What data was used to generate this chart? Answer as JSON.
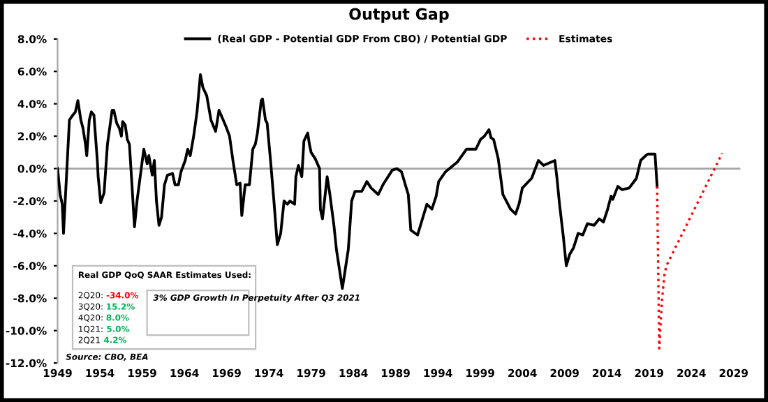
{
  "chart_data": {
    "type": "line",
    "title": "Output Gap",
    "series": [
      {
        "name": "(Real GDP - Potential GDP From CBO) / Potential GDP",
        "color": "#000000",
        "line_style": "solid",
        "x": [
          1949.0,
          1949.3,
          1949.55,
          1949.7,
          1950.4,
          1950.8,
          1951.1,
          1951.4,
          1951.75,
          1952.0,
          1952.3,
          1952.45,
          1952.75,
          1953.0,
          1953.3,
          1953.7,
          1953.8,
          1954.1,
          1954.5,
          1954.9,
          1955.45,
          1955.65,
          1956.0,
          1956.3,
          1956.55,
          1956.7,
          1957.0,
          1957.25,
          1957.5,
          1957.8,
          1958.1,
          1958.4,
          1959.2,
          1959.6,
          1959.8,
          1960.2,
          1960.45,
          1960.7,
          1961.0,
          1961.3,
          1961.65,
          1962.0,
          1962.6,
          1962.9,
          1963.3,
          1963.6,
          1964.1,
          1964.4,
          1964.7,
          1965.1,
          1965.5,
          1965.9,
          1966.2,
          1966.65,
          1967.15,
          1967.7,
          1968.1,
          1968.6,
          1969.0,
          1969.35,
          1969.75,
          1970.2,
          1970.6,
          1970.8,
          1971.2,
          1971.7,
          1972.1,
          1972.4,
          1972.65,
          1973.1,
          1973.25,
          1973.6,
          1973.8,
          1974.2,
          1974.6,
          1975.0,
          1975.4,
          1975.8,
          1976.2,
          1976.5,
          1977.05,
          1977.2,
          1977.5,
          1977.9,
          1978.15,
          1978.6,
          1978.8,
          1979.0,
          1979.5,
          1980.0,
          1980.1,
          1980.35,
          1980.9,
          1981.2,
          1981.7,
          1982.0,
          1982.7,
          1983.4,
          1983.8,
          1984.2,
          1985.0,
          1985.6,
          1986.1,
          1986.95,
          1987.5,
          1988.6,
          1989.15,
          1989.7,
          1990.5,
          1990.8,
          1991.6,
          1992.7,
          1993.3,
          1993.8,
          1994.1,
          1994.9,
          1996.3,
          1997.4,
          1998.5,
          1999.05,
          1999.5,
          2000.05,
          2000.3,
          2000.6,
          2001.15,
          2001.7,
          2002.6,
          2003.2,
          2003.6,
          2004.0,
          2005.1,
          2005.9,
          2006.5,
          2007.85,
          2008.1,
          2008.4,
          2008.85,
          2009.2,
          2009.6,
          2010.05,
          2010.6,
          2011.15,
          2011.7,
          2012.5,
          2013.1,
          2013.6,
          2014.1,
          2014.5,
          2014.7,
          2015.3,
          2015.8,
          2016.65,
          2017.5,
          2018.0,
          2018.6,
          2018.85,
          2019.7,
          2019.95
        ],
        "values": [
          0.0,
          -1.6,
          -2.2,
          -4.0,
          3.0,
          3.3,
          3.5,
          4.2,
          3.0,
          2.5,
          1.5,
          0.8,
          3.0,
          3.5,
          3.3,
          0.5,
          -0.5,
          -2.1,
          -1.5,
          1.5,
          3.6,
          3.6,
          2.8,
          2.5,
          2.0,
          2.9,
          2.7,
          1.8,
          1.5,
          -1.0,
          -3.6,
          -2.0,
          1.2,
          0.3,
          0.8,
          -0.4,
          0.5,
          -2.0,
          -3.5,
          -3.0,
          -1.0,
          -0.4,
          -0.3,
          -1.0,
          -1.0,
          -0.2,
          0.5,
          1.2,
          0.8,
          2.0,
          3.5,
          5.8,
          5.0,
          4.5,
          3.0,
          2.3,
          3.6,
          3.0,
          2.5,
          2.0,
          0.5,
          -1.0,
          -0.9,
          -2.9,
          -1.0,
          -1.0,
          1.2,
          1.5,
          2.2,
          4.2,
          4.3,
          3.0,
          2.8,
          0.5,
          -2.0,
          -4.7,
          -4.0,
          -2.0,
          -2.2,
          -2.0,
          -2.2,
          -0.5,
          0.2,
          -0.5,
          1.7,
          2.2,
          1.5,
          1.0,
          0.6,
          0.0,
          -2.5,
          -3.1,
          -0.5,
          -1.5,
          -3.5,
          -5.0,
          -7.4,
          -5.0,
          -2.0,
          -1.4,
          -1.4,
          -0.8,
          -1.2,
          -1.6,
          -1.0,
          -0.1,
          0.0,
          -0.2,
          -1.6,
          -3.8,
          -4.1,
          -2.2,
          -2.5,
          -1.7,
          -0.8,
          -0.2,
          0.4,
          1.2,
          1.2,
          1.8,
          2.0,
          2.4,
          1.9,
          1.8,
          0.6,
          -1.6,
          -2.5,
          -2.8,
          -2.2,
          -1.2,
          -0.6,
          0.5,
          0.2,
          0.5,
          -0.6,
          -2.2,
          -4.2,
          -6.0,
          -5.3,
          -4.9,
          -4.0,
          -4.1,
          -3.4,
          -3.5,
          -3.1,
          -3.3,
          -2.5,
          -1.7,
          -1.9,
          -1.1,
          -1.3,
          -1.2,
          -0.6,
          0.5,
          0.8,
          0.9,
          0.9,
          -1.1
        ]
      },
      {
        "name": "Estimates",
        "color": "#ff0000",
        "line_style": "dotted",
        "x": [
          2019.95,
          2020.2,
          2020.5,
          2020.8,
          2021.05,
          2021.9,
          2027.65
        ],
        "values": [
          -1.1,
          -11.1,
          -8.3,
          -6.6,
          -6.0,
          -5.1,
          0.95
        ]
      }
    ],
    "xlim": [
      1949,
      2029.8
    ],
    "xticks": [
      1949,
      1954,
      1959,
      1964,
      1969,
      1974,
      1979,
      1984,
      1989,
      1994,
      1999,
      2004,
      2009,
      2014,
      2019,
      2024,
      2029
    ],
    "ylim": [
      -12,
      8
    ],
    "yticks": [
      {
        "value": -12,
        "label": "-12.0%"
      },
      {
        "value": -10,
        "label": "-10.0%"
      },
      {
        "value": -8,
        "label": "-8.0%"
      },
      {
        "value": -6,
        "label": "-6.0%"
      },
      {
        "value": -4,
        "label": "-4.0%"
      },
      {
        "value": -2,
        "label": "-2.0%"
      },
      {
        "value": 0,
        "label": "0.0%"
      },
      {
        "value": 2,
        "label": "2.0%"
      },
      {
        "value": 4,
        "label": "4.0%"
      },
      {
        "value": 6,
        "label": "6.0%"
      },
      {
        "value": 8,
        "label": "8.0%"
      }
    ],
    "ref_lines": [
      {
        "axis": "y",
        "value": 0,
        "color": "#a6a6a6"
      }
    ],
    "legend": "top",
    "grid": false,
    "annotations": [
      "Real GDP QoQ SAAR Estimates Used:",
      "2Q20: -34.0%",
      "3Q20: 15.2%",
      "4Q20: 8.0%",
      "1Q21: 5.0%",
      "2Q21 4.2%",
      "3% GDP Growth In Perpetuity After Q3 2021",
      "Source: CBO, BEA"
    ]
  }
}
